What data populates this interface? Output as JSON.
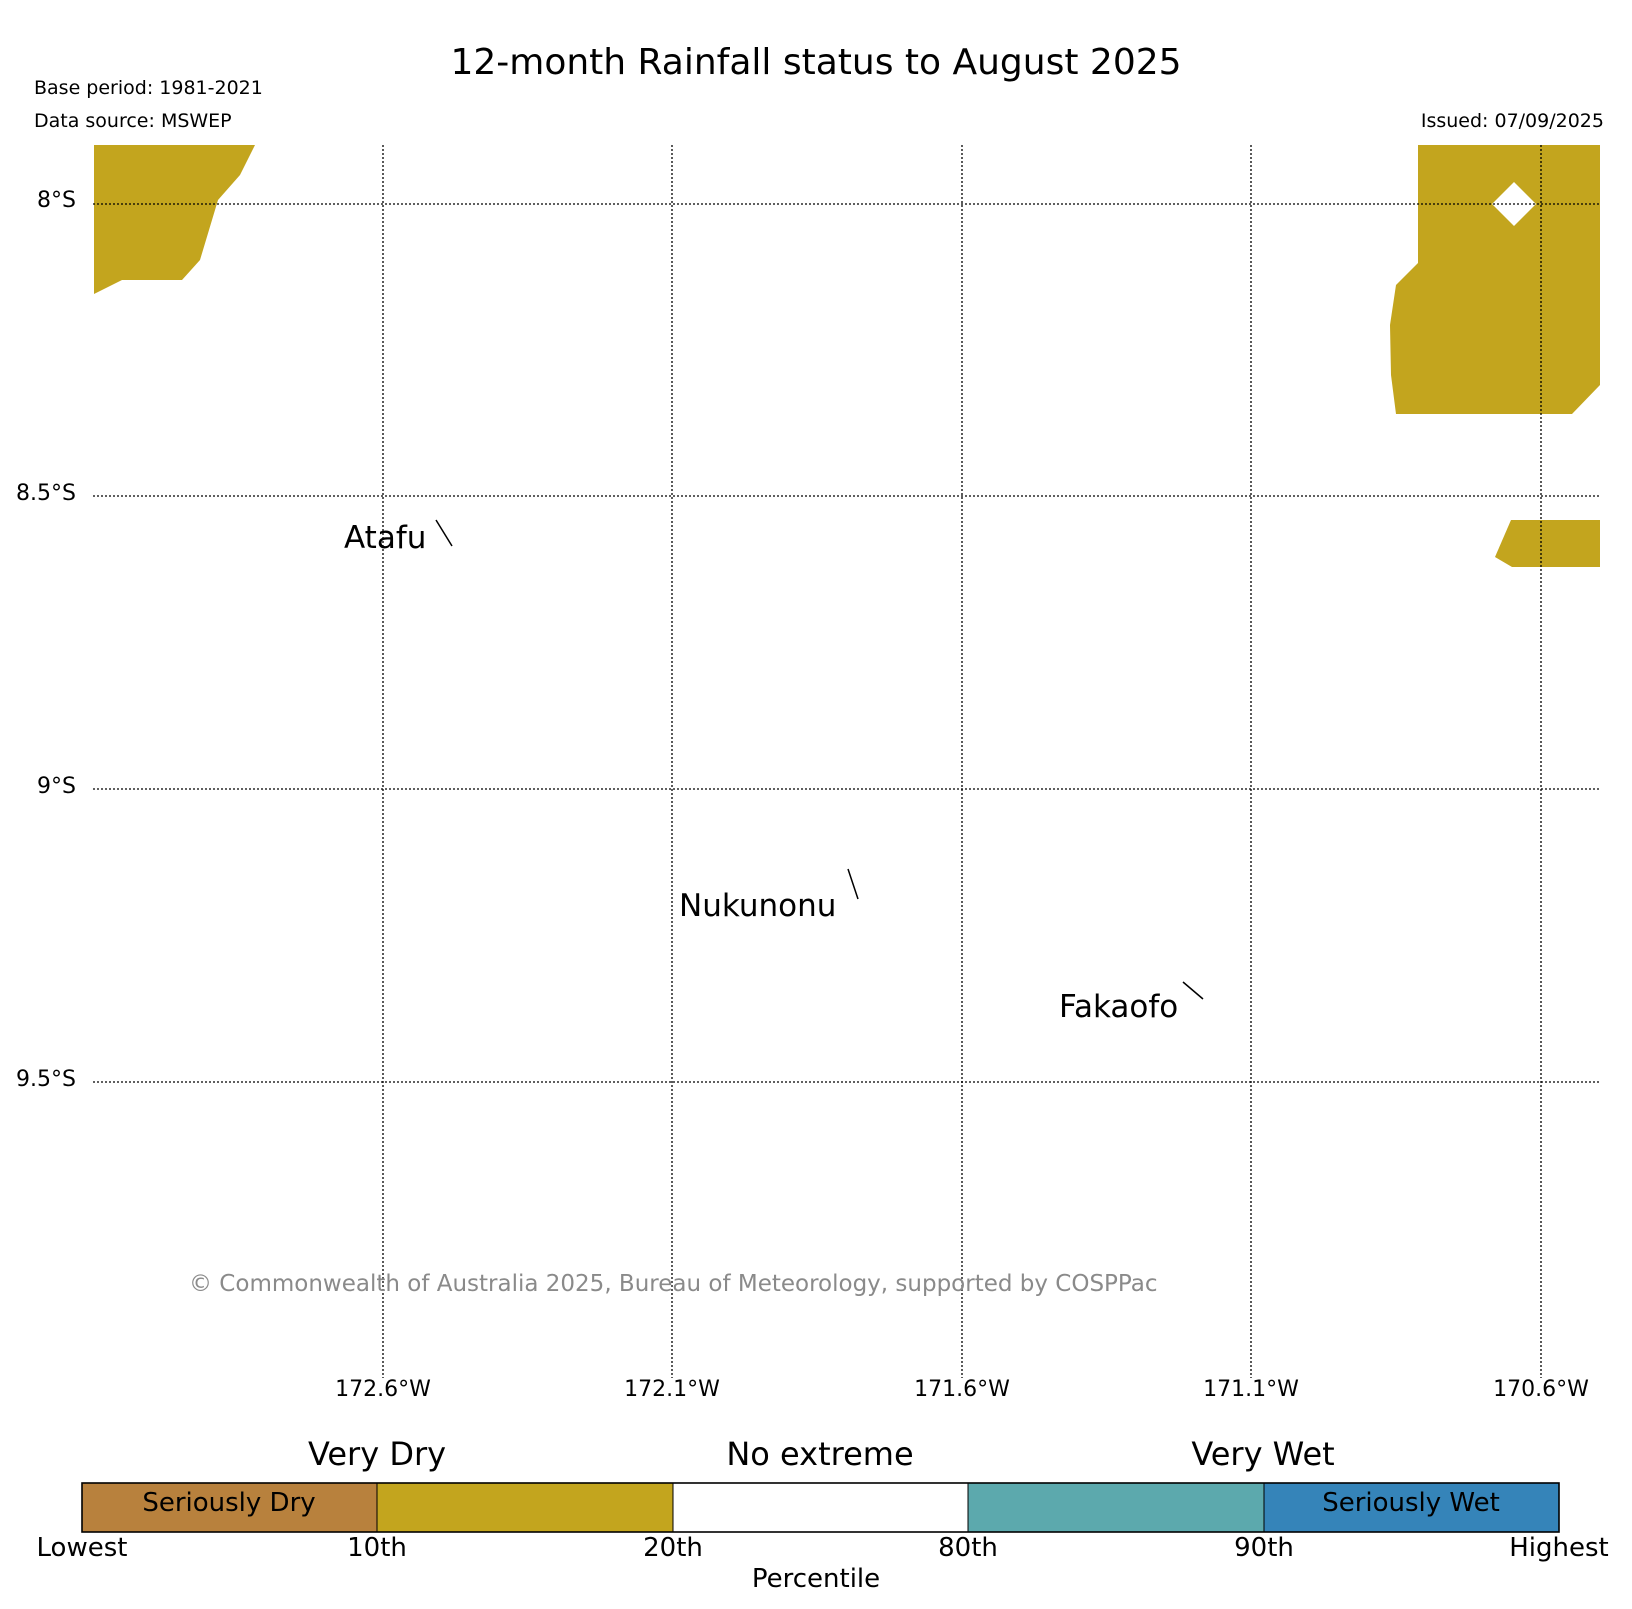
{
  "title": "12-month Rainfall status to August 2025",
  "base_period": "Base period: 1981-2021",
  "data_source": "Data source: MSWEP",
  "issued": "Issued: 07/09/2025",
  "lat_labels": [
    "8°S",
    "8.5°S",
    "9°S",
    "9.5°S"
  ],
  "lon_labels": [
    "172.6°W",
    "172.1°W",
    "171.6°W",
    "171.1°W",
    "170.6°W"
  ],
  "islands": [
    "Atafu",
    "Nukunonu",
    "Fakaofo"
  ],
  "copyright": "© Commonwealth of Australia 2025, Bureau of Meteorology, supported by COSPPac",
  "legend": {
    "categories": [
      "Very Dry",
      "No extreme",
      "Very Wet"
    ],
    "bar_labels": [
      "Seriously Dry",
      "Seriously Wet"
    ],
    "percentiles": [
      "Lowest",
      "10th",
      "20th",
      "80th",
      "90th",
      "Highest"
    ],
    "xlabel": "Percentile",
    "colors": [
      "#b8813d",
      "#c3a51e",
      "#ffffff",
      "#5ca9ad",
      "#3584b9"
    ]
  },
  "colors": {
    "very_dry": "#c3a51e"
  }
}
